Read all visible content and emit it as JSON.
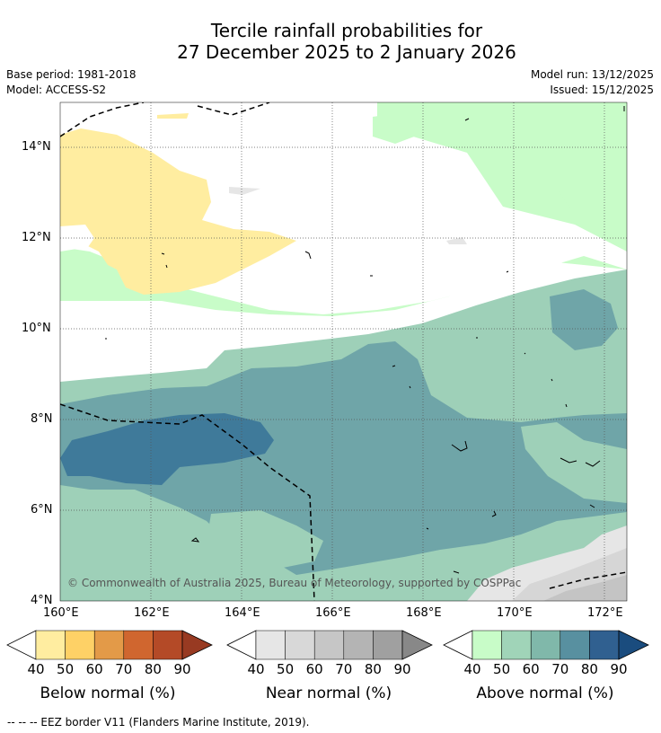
{
  "title": {
    "line1": "Tercile rainfall probabilities for",
    "line2": "27 December 2025 to 2 January 2026"
  },
  "meta": {
    "base_period": "Base period: 1981-2018",
    "model": "Model: ACCESS-S2",
    "model_run": "Model run: 13/12/2025",
    "issued": "Issued: 15/12/2025"
  },
  "map": {
    "lat_labels": [
      "14°N",
      "12°N",
      "10°N",
      "8°N",
      "6°N",
      "4°N"
    ],
    "lon_labels": [
      "160°E",
      "162°E",
      "164°E",
      "166°E",
      "168°E",
      "170°E",
      "172°E"
    ],
    "copyright": "© Commonwealth of Australia 2025, Bureau of Meteorology, supported by COSPPac"
  },
  "colorbars": [
    {
      "name": "below",
      "label": "Below normal (%)",
      "ticks": [
        "40",
        "50",
        "60",
        "70",
        "80",
        "90"
      ],
      "colors": [
        "#ffeda0",
        "#fed166",
        "#e39a48",
        "#d0662f",
        "#b44a27",
        "#983a22"
      ]
    },
    {
      "name": "near",
      "label": "Near normal (%)",
      "ticks": [
        "40",
        "50",
        "60",
        "70",
        "80",
        "90"
      ],
      "colors": [
        "#e6e6e6",
        "#d8d8d8",
        "#c6c6c6",
        "#b4b4b4",
        "#a0a0a0",
        "#888888"
      ]
    },
    {
      "name": "above",
      "label": "Above normal (%)",
      "ticks": [
        "40",
        "50",
        "60",
        "70",
        "80",
        "90"
      ],
      "colors": [
        "#c8fcc8",
        "#a0d4b8",
        "#80b8aa",
        "#5890a0",
        "#306090",
        "#1a4c7e"
      ]
    }
  ],
  "palette": {
    "below_40": "#ffeda0",
    "above_40": "#c8fcc8",
    "above_50": "#9ed0b8",
    "above_60": "#6fa5a8",
    "above_70": "#3f7a9a",
    "near_40": "#e6e6e6",
    "near_50": "#d6d6d6",
    "near_60": "#c4c4c4"
  },
  "footer": "--  --  -- EEZ border V11 (Flanders Marine Institute, 2019)."
}
